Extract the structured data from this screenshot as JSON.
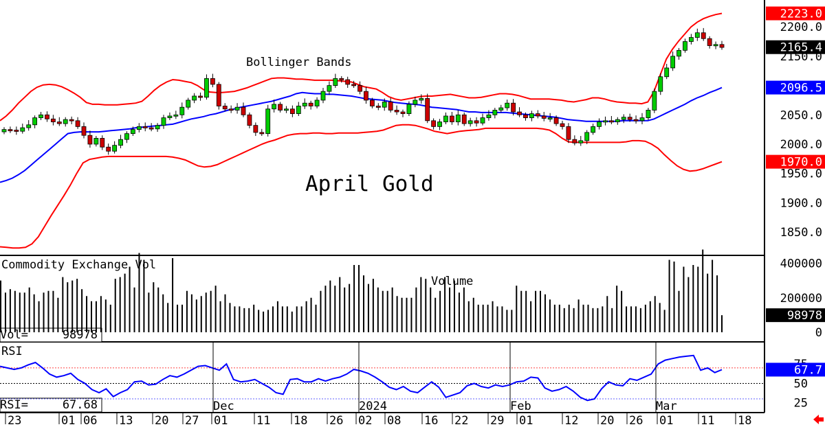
{
  "chart_data": [
    {
      "type": "candlestick",
      "title": "April Gold",
      "annotation": "Bollinger Bands",
      "ylim": [
        1815,
        2240
      ],
      "y_ticks": [
        "2200.0",
        "2150.0",
        "2100.0",
        "2050.0",
        "2000.0",
        "1950.0",
        "1900.0",
        "1850.0"
      ],
      "price_tags": [
        {
          "label": "2223.0",
          "value": 2223.0,
          "color": "#ff0000"
        },
        {
          "label": "2165.4",
          "value": 2165.4,
          "color": "#000000"
        },
        {
          "label": "2096.5",
          "value": 2096.5,
          "color": "#0000ff"
        },
        {
          "label": "1970.0",
          "value": 1970.0,
          "color": "#ff0000"
        }
      ],
      "closes": [
        2025,
        2024,
        2022,
        2028,
        2033,
        2045,
        2050,
        2043,
        2038,
        2035,
        2042,
        2040,
        2030,
        2015,
        2000,
        2010,
        1995,
        1988,
        1998,
        2008,
        2018,
        2025,
        2030,
        2028,
        2026,
        2032,
        2045,
        2048,
        2050,
        2063,
        2075,
        2082,
        2080,
        2112,
        2102,
        2065,
        2060,
        2058,
        2063,
        2050,
        2032,
        2020,
        2018,
        2060,
        2068,
        2058,
        2060,
        2052,
        2065,
        2070,
        2065,
        2075,
        2090,
        2100,
        2112,
        2110,
        2102,
        2100,
        2090,
        2075,
        2065,
        2063,
        2072,
        2058,
        2055,
        2052,
        2068,
        2075,
        2078,
        2040,
        2030,
        2038,
        2048,
        2038,
        2050,
        2035,
        2040,
        2036,
        2045,
        2050,
        2058,
        2062,
        2070,
        2055,
        2050,
        2045,
        2052,
        2048,
        2044,
        2045,
        2035,
        2030,
        2008,
        2002,
        2006,
        2020,
        2030,
        2038,
        2040,
        2038,
        2042,
        2046,
        2042,
        2040,
        2045,
        2058,
        2090,
        2115,
        2130,
        2150,
        2160,
        2175,
        2182,
        2190,
        2180,
        2168,
        2170,
        2165
      ],
      "bb_upper": [
        2040,
        2048,
        2058,
        2070,
        2080,
        2090,
        2097,
        2101,
        2102,
        2101,
        2098,
        2093,
        2087,
        2080,
        2071,
        2068,
        2068,
        2067,
        2067,
        2067,
        2068,
        2069,
        2070,
        2073,
        2082,
        2092,
        2100,
        2106,
        2110,
        2109,
        2107,
        2105,
        2100,
        2093,
        2089,
        2088,
        2088,
        2089,
        2090,
        2093,
        2096,
        2100,
        2104,
        2108,
        2112,
        2113,
        2113,
        2112,
        2111,
        2111,
        2110,
        2109,
        2109,
        2109,
        2109,
        2108,
        2107,
        2106,
        2102,
        2098,
        2096,
        2094,
        2088,
        2081,
        2077,
        2075,
        2077,
        2079,
        2081,
        2082,
        2082,
        2083,
        2084,
        2085,
        2083,
        2081,
        2079,
        2079,
        2080,
        2082,
        2084,
        2086,
        2086,
        2085,
        2083,
        2080,
        2077,
        2077,
        2077,
        2077,
        2076,
        2075,
        2073,
        2072,
        2074,
        2076,
        2079,
        2079,
        2077,
        2074,
        2072,
        2071,
        2070,
        2070,
        2069,
        2072,
        2090,
        2118,
        2145,
        2162,
        2176,
        2188,
        2200,
        2208,
        2214,
        2218,
        2221,
        2223
      ],
      "bb_mid": [
        1935,
        1938,
        1942,
        1948,
        1955,
        1964,
        1973,
        1982,
        1991,
        2000,
        2009,
        2018,
        2020,
        2021,
        2021,
        2021,
        2021,
        2022,
        2023,
        2024,
        2025,
        2026,
        2028,
        2029,
        2030,
        2031,
        2032,
        2033,
        2034,
        2037,
        2040,
        2043,
        2045,
        2047,
        2050,
        2052,
        2055,
        2058,
        2060,
        2063,
        2065,
        2067,
        2069,
        2071,
        2073,
        2076,
        2079,
        2082,
        2086,
        2088,
        2087,
        2086,
        2086,
        2085,
        2085,
        2084,
        2083,
        2082,
        2080,
        2078,
        2077,
        2076,
        2075,
        2073,
        2071,
        2070,
        2069,
        2068,
        2067,
        2065,
        2063,
        2062,
        2061,
        2060,
        2059,
        2057,
        2055,
        2055,
        2054,
        2054,
        2054,
        2054,
        2054,
        2053,
        2052,
        2051,
        2050,
        2049,
        2048,
        2047,
        2046,
        2044,
        2042,
        2041,
        2040,
        2039,
        2039,
        2039,
        2039,
        2039,
        2039,
        2040,
        2040,
        2040,
        2040,
        2040,
        2043,
        2048,
        2053,
        2058,
        2063,
        2068,
        2074,
        2079,
        2083,
        2088,
        2092,
        2096.5
      ],
      "bb_lower": [
        1825,
        1824,
        1823,
        1823,
        1824,
        1830,
        1842,
        1860,
        1878,
        1895,
        1912,
        1930,
        1950,
        1968,
        1974,
        1976,
        1978,
        1979,
        1979,
        1979,
        1979,
        1979,
        1979,
        1979,
        1979,
        1979,
        1979,
        1978,
        1976,
        1973,
        1968,
        1963,
        1961,
        1962,
        1965,
        1970,
        1975,
        1980,
        1985,
        1990,
        1995,
        2000,
        2004,
        2007,
        2011,
        2015,
        2017,
        2018,
        2018,
        2019,
        2019,
        2018,
        2018,
        2019,
        2019,
        2019,
        2019,
        2020,
        2021,
        2022,
        2024,
        2028,
        2032,
        2033,
        2033,
        2032,
        2029,
        2026,
        2022,
        2020,
        2018,
        2020,
        2022,
        2023,
        2024,
        2025,
        2027,
        2027,
        2027,
        2027,
        2027,
        2027,
        2027,
        2027,
        2027,
        2026,
        2024,
        2018,
        2010,
        2004,
        2003,
        2003,
        2003,
        2003,
        2003,
        2003,
        2003,
        2003,
        2004,
        2006,
        2006,
        2005,
        2000,
        1993,
        1982,
        1972,
        1963,
        1957,
        1954,
        1955,
        1958,
        1962,
        1966,
        1970
      ]
    },
    {
      "type": "bar",
      "title": "Commodity Exchange Vol",
      "annotation": "Volume",
      "ylim": [
        0,
        430000
      ],
      "y_ticks": [
        "400000",
        "200000",
        "0"
      ],
      "last_value": "98978",
      "readout_label": "Vol=",
      "readout_value": "98978",
      "values": [
        300000,
        230000,
        250000,
        240000,
        230000,
        230000,
        260000,
        220000,
        180000,
        230000,
        240000,
        240000,
        200000,
        320000,
        290000,
        300000,
        310000,
        250000,
        210000,
        180000,
        180000,
        210000,
        190000,
        160000,
        310000,
        320000,
        340000,
        380000,
        260000,
        460000,
        420000,
        230000,
        290000,
        260000,
        220000,
        170000,
        430000,
        160000,
        160000,
        240000,
        220000,
        190000,
        210000,
        230000,
        240000,
        270000,
        180000,
        220000,
        170000,
        150000,
        150000,
        140000,
        140000,
        160000,
        130000,
        120000,
        130000,
        150000,
        180000,
        150000,
        150000,
        120000,
        150000,
        150000,
        180000,
        200000,
        160000,
        240000,
        270000,
        300000,
        270000,
        320000,
        260000,
        280000,
        390000,
        390000,
        330000,
        280000,
        310000,
        260000,
        240000,
        240000,
        260000,
        210000,
        200000,
        200000,
        200000,
        260000,
        320000,
        310000,
        260000,
        200000,
        240000,
        320000,
        260000,
        300000,
        230000,
        260000,
        180000,
        200000,
        160000,
        160000,
        160000,
        180000,
        150000,
        150000,
        130000,
        130000,
        270000,
        240000,
        240000,
        180000,
        240000,
        240000,
        220000,
        190000,
        160000,
        160000,
        140000,
        160000,
        140000,
        190000,
        160000,
        160000,
        140000,
        140000,
        150000,
        210000,
        140000,
        270000,
        240000,
        150000,
        150000,
        150000,
        140000,
        160000,
        180000,
        210000,
        170000,
        130000,
        420000,
        410000,
        240000,
        380000,
        320000,
        390000,
        380000,
        480000,
        340000,
        420000,
        330000,
        98978
      ]
    },
    {
      "type": "line",
      "title": "RSI",
      "readout_label": "RSI=",
      "readout_value": "67.68",
      "ylim": [
        15,
        100
      ],
      "y_ticks": [
        "75",
        "50",
        "25"
      ],
      "last_value": "67.7",
      "reference_levels": [
        70,
        50,
        30
      ],
      "values": [
        72,
        70,
        68,
        70,
        74,
        77,
        70,
        62,
        58,
        60,
        63,
        55,
        50,
        42,
        38,
        43,
        33,
        38,
        42,
        52,
        53,
        48,
        49,
        55,
        60,
        58,
        62,
        67,
        72,
        73,
        70,
        67,
        75,
        55,
        52,
        53,
        55,
        50,
        45,
        38,
        36,
        55,
        56,
        52,
        52,
        56,
        53,
        56,
        58,
        62,
        68,
        66,
        63,
        58,
        52,
        45,
        42,
        46,
        40,
        38,
        45,
        52,
        45,
        32,
        35,
        38,
        47,
        50,
        46,
        44,
        48,
        46,
        48,
        52,
        53,
        58,
        57,
        44,
        40,
        42,
        46,
        40,
        32,
        28,
        30,
        43,
        52,
        48,
        47,
        56,
        54,
        58,
        62,
        75,
        80,
        82,
        84,
        85,
        86,
        67,
        70,
        64,
        67.7
      ]
    }
  ],
  "x_axis": {
    "month_labels": [
      "Dec",
      "2024",
      "Feb",
      "Mar"
    ],
    "day_labels": [
      "23",
      "01",
      "06",
      "13",
      "20",
      "27",
      "01",
      "11",
      "18",
      "26",
      "02",
      "08",
      "16",
      "22",
      "29",
      "01",
      "12",
      "20",
      "26",
      "01",
      "11",
      "18"
    ]
  },
  "colors": {
    "up_candle": "#00cc00",
    "down_candle": "#cc0000",
    "bollinger": "#ff0000",
    "moving_average": "#0000ff",
    "rsi_line": "#0000ff",
    "upper_reference": "#ff4040",
    "lower_reference": "#6060ff"
  },
  "scroll_arrow_icon": "left-arrow-icon"
}
